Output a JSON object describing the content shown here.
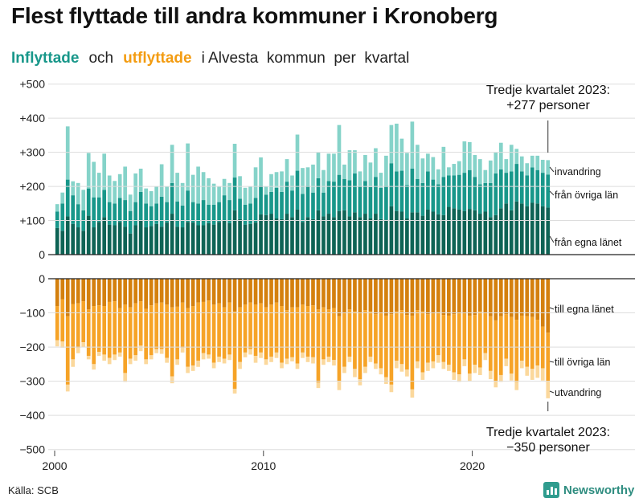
{
  "title": "Flest flyttade till andra kommuner i Kronoberg",
  "subtitle": {
    "in_word": "Inflyttade",
    "and_word": "och",
    "out_word": "utflyttade",
    "rest": "i Alvesta  kommun  per  kvartal"
  },
  "source": "Källa: SCB",
  "logo_name": "Newsworthy",
  "colors": {
    "in_own": "#0e6355",
    "in_other": "#18978a",
    "in_abroad": "#85d3c9",
    "out_own": "#d4800e",
    "out_other": "#f6a327",
    "out_abroad": "#fbd89c"
  },
  "chart_data": {
    "type": "bar",
    "stacked": true,
    "x_start_year": 2000,
    "quarters": 95,
    "y_axis_top": {
      "ticks": [
        0,
        100,
        200,
        300,
        400,
        500
      ],
      "tick_labels": [
        "0",
        "+100",
        "+200",
        "+300",
        "+400",
        "+500"
      ],
      "ylim": [
        0,
        500
      ]
    },
    "y_axis_bottom": {
      "ticks": [
        0,
        -100,
        -200,
        -300,
        -400,
        -500
      ],
      "tick_labels": [
        "0",
        "−100",
        "−200",
        "−300",
        "−400",
        "−500"
      ],
      "ylim": [
        -500,
        0
      ]
    },
    "x_ticks": [
      {
        "year": 2000,
        "label": "2000"
      },
      {
        "year": 2010,
        "label": "2010"
      },
      {
        "year": 2020,
        "label": "2020"
      }
    ],
    "annotation_top": {
      "line1": "Tredje kvartalet 2023:",
      "line2": "+277 personer"
    },
    "annotation_bottom": {
      "line1": "Tredje kvartalet 2023:",
      "line2": "−350 personer"
    },
    "series_labels": {
      "in_abroad": "invandring",
      "in_other": "från övriga län",
      "in_own": "från egna länet",
      "out_own": "till egna länet",
      "out_other": "till övriga län",
      "out_abroad": "utvandring"
    },
    "inflows_total": [
      148,
      182,
      376,
      215,
      210,
      190,
      298,
      272,
      240,
      296,
      232,
      216,
      236,
      258,
      176,
      238,
      252,
      194,
      186,
      200,
      265,
      200,
      322,
      240,
      210,
      326,
      234,
      258,
      242,
      224,
      208,
      200,
      222,
      210,
      325,
      230,
      196,
      200,
      256,
      285,
      200,
      236,
      242,
      244,
      280,
      232,
      352,
      254,
      256,
      264,
      300,
      248,
      296,
      296,
      380,
      264,
      306,
      306,
      244,
      292,
      270,
      312,
      240,
      290,
      380,
      384,
      340,
      298,
      390,
      322,
      282,
      296,
      286,
      250,
      316,
      256,
      266,
      274,
      332,
      330,
      292,
      280,
      248,
      276,
      300,
      328,
      280,
      322,
      310,
      288,
      268,
      290,
      290,
      278,
      277
    ],
    "inflows_own": [
      78,
      70,
      112,
      90,
      80,
      70,
      114,
      80,
      96,
      110,
      88,
      86,
      96,
      82,
      62,
      86,
      100,
      80,
      84,
      90,
      82,
      94,
      120,
      82,
      80,
      96,
      94,
      86,
      86,
      92,
      88,
      96,
      100,
      92,
      130,
      104,
      88,
      90,
      94,
      118,
      116,
      120,
      106,
      104,
      120,
      110,
      132,
      96,
      110,
      104,
      130,
      112,
      120,
      110,
      128,
      130,
      112,
      124,
      110,
      120,
      106,
      120,
      104,
      102,
      142,
      128,
      126,
      106,
      124,
      124,
      114,
      132,
      126,
      118,
      116,
      140,
      136,
      132,
      128,
      134,
      130,
      120,
      126,
      110,
      116,
      136,
      150,
      130,
      156,
      150,
      142,
      152,
      150,
      142,
      138
    ],
    "inflows_other": [
      48,
      80,
      108,
      84,
      68,
      60,
      80,
      88,
      72,
      80,
      66,
      64,
      70,
      78,
      66,
      68,
      84,
      70,
      58,
      60,
      88,
      60,
      90,
      74,
      64,
      92,
      60,
      64,
      74,
      54,
      58,
      58,
      74,
      68,
      96,
      60,
      58,
      60,
      72,
      84,
      60,
      64,
      90,
      80,
      94,
      78,
      114,
      82,
      92,
      78,
      94,
      70,
      96,
      104,
      106,
      92,
      106,
      114,
      90,
      96,
      92,
      108,
      92,
      100,
      126,
      116,
      120,
      98,
      128,
      98,
      96,
      112,
      94,
      88,
      112,
      92,
      96,
      102,
      112,
      114,
      98,
      86,
      84,
      100,
      122,
      114,
      90,
      114,
      110,
      94,
      90,
      104,
      98,
      98,
      97
    ],
    "outflows_total": [
      -198,
      -202,
      -330,
      -258,
      -218,
      -200,
      -236,
      -266,
      -226,
      -240,
      -250,
      -238,
      -228,
      -302,
      -250,
      -240,
      -212,
      -250,
      -236,
      -218,
      -220,
      -246,
      -306,
      -252,
      -216,
      -276,
      -270,
      -258,
      -236,
      -234,
      -262,
      -244,
      -248,
      -238,
      -336,
      -264,
      -230,
      -222,
      -246,
      -232,
      -252,
      -244,
      -232,
      -262,
      -250,
      -242,
      -264,
      -232,
      -244,
      -248,
      -320,
      -252,
      -244,
      -254,
      -326,
      -276,
      -244,
      -288,
      -312,
      -276,
      -244,
      -264,
      -280,
      -308,
      -332,
      -262,
      -272,
      -286,
      -348,
      -262,
      -296,
      -270,
      -262,
      -246,
      -264,
      -270,
      -296,
      -302,
      -256,
      -300,
      -276,
      -282,
      -238,
      -294,
      -318,
      -302,
      -256,
      -298,
      -326,
      -262,
      -284,
      -296,
      -290,
      -298,
      -350
    ],
    "outflows_own": [
      -80,
      -60,
      -110,
      -74,
      -72,
      -66,
      -90,
      -80,
      -78,
      -80,
      -68,
      -66,
      -86,
      -76,
      -84,
      -72,
      -66,
      -88,
      -78,
      -72,
      -70,
      -76,
      -84,
      -82,
      -70,
      -86,
      -80,
      -70,
      -68,
      -64,
      -76,
      -72,
      -84,
      -70,
      -96,
      -84,
      -76,
      -70,
      -76,
      -72,
      -84,
      -76,
      -70,
      -80,
      -92,
      -84,
      -84,
      -76,
      -80,
      -78,
      -90,
      -84,
      -90,
      -86,
      -110,
      -100,
      -90,
      -96,
      -100,
      -92,
      -96,
      -104,
      -100,
      -108,
      -104,
      -96,
      -92,
      -106,
      -108,
      -92,
      -96,
      -104,
      -102,
      -98,
      -106,
      -108,
      -104,
      -100,
      -102,
      -108,
      -106,
      -96,
      -100,
      -110,
      -122,
      -110,
      -104,
      -112,
      -120,
      -108,
      -110,
      -112,
      -120,
      -140,
      -158
    ],
    "outflows_other": [
      -100,
      -124,
      -200,
      -162,
      -130,
      -120,
      -136,
      -170,
      -136,
      -142,
      -164,
      -156,
      -130,
      -200,
      -150,
      -152,
      -130,
      -148,
      -146,
      -134,
      -136,
      -156,
      -202,
      -154,
      -132,
      -172,
      -174,
      -170,
      -150,
      -158,
      -170,
      -156,
      -150,
      -152,
      -226,
      -160,
      -140,
      -136,
      -150,
      -144,
      -152,
      -152,
      -146,
      -166,
      -142,
      -146,
      -164,
      -140,
      -148,
      -152,
      -214,
      -152,
      -138,
      -152,
      -190,
      -158,
      -138,
      -168,
      -194,
      -166,
      -132,
      -144,
      -162,
      -180,
      -206,
      -144,
      -158,
      -160,
      -216,
      -150,
      -178,
      -142,
      -140,
      -126,
      -138,
      -144,
      -170,
      -180,
      -134,
      -170,
      -146,
      -164,
      -118,
      -160,
      -178,
      -172,
      -130,
      -166,
      -182,
      -132,
      -148,
      -152,
      -134,
      -122,
      -142
    ]
  }
}
